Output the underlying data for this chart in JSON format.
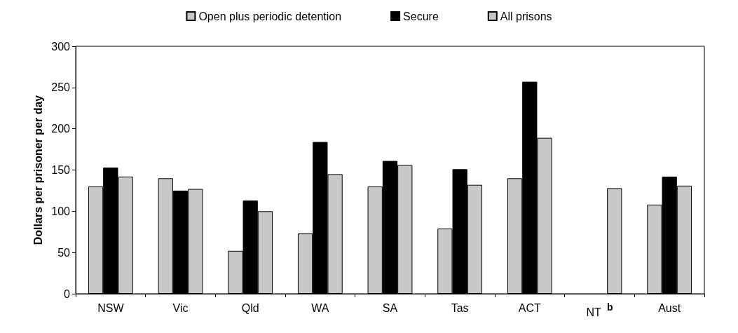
{
  "chart_data": {
    "type": "bar",
    "ylabel": "Dollars per prisoner per day",
    "categories": [
      "NSW",
      "Vic",
      "Qld",
      "WA",
      "SA",
      "Tas",
      "ACT",
      "NT$^{b}$",
      "Aust"
    ],
    "series": [
      {
        "name": "Open plus periodic detention",
        "color": "#c8c8c8",
        "values": [
          130,
          140,
          52,
          73,
          130,
          79,
          140,
          null,
          108
        ]
      },
      {
        "name": "Secure",
        "color": "#000000",
        "values": [
          153,
          125,
          113,
          184,
          161,
          151,
          257,
          null,
          142
        ]
      },
      {
        "name": "All prisons",
        "color": "#c8c8c8",
        "values": [
          142,
          127,
          100,
          145,
          156,
          132,
          189,
          128,
          131
        ]
      }
    ],
    "ylim": [
      0,
      300
    ],
    "yticks": [
      0,
      50,
      100,
      150,
      200,
      250,
      300
    ],
    "grid": false,
    "legend": "top"
  }
}
